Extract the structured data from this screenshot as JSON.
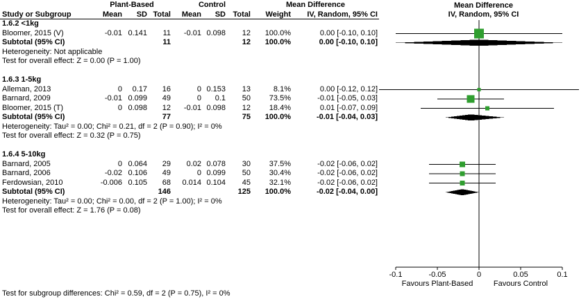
{
  "header": {
    "group1_label": "Plant-Based",
    "group2_label": "Control",
    "md_label": "Mean Difference",
    "col_study": "Study or Subgroup",
    "col_mean": "Mean",
    "col_sd": "SD",
    "col_total": "Total",
    "col_weight": "Weight",
    "col_ci": "IV, Random, 95% CI",
    "plot_title": "Mean Difference",
    "plot_subtitle": "IV, Random, 95% CI"
  },
  "colors": {
    "square": "#2f9e2f",
    "diamond": "#000000",
    "line": "#000000"
  },
  "footer": {
    "subgroup_test": "Test for subgroup differences: Chi² = 0.59, df = 2 (P = 0.75), I² = 0%"
  },
  "chart_data": {
    "type": "forest",
    "effect_measure": "Mean Difference IV, Random, 95% CI",
    "axis": {
      "min": -0.1,
      "max": 0.1,
      "ticks": [
        -0.1,
        -0.05,
        0,
        0.05,
        0.1
      ],
      "tick_labels": [
        "-0.1",
        "-0.05",
        "0",
        "0.05",
        "0.1"
      ],
      "left_label": "Favours Plant-Based",
      "right_label": "Favours Control"
    },
    "groups": [
      {
        "name": "1.6.2 <1kg",
        "studies": [
          {
            "label": "Bloomer, 2015 (V)",
            "mean1": "-0.01",
            "sd1": "0.141",
            "n1": "11",
            "mean2": "-0.01",
            "sd2": "0.098",
            "n2": "12",
            "weight": "100.0%",
            "ci_text": "0.00 [-0.10, 0.10]",
            "est": 0.0,
            "lo": -0.1,
            "hi": 0.1,
            "weight_pct": 100.0
          }
        ],
        "subtotal": {
          "label": "Subtotal (95% CI)",
          "n1": "11",
          "n2": "12",
          "weight": "100.0%",
          "ci_text": "0.00 [-0.10, 0.10]",
          "est": 0.0,
          "lo": -0.1,
          "hi": 0.1
        },
        "heterogeneity": "Heterogeneity: Not applicable",
        "overall_test": "Test for overall effect: Z = 0.00 (P = 1.00)"
      },
      {
        "name": "1.6.3 1-5kg",
        "studies": [
          {
            "label": "Alleman, 2013",
            "mean1": "0",
            "sd1": "0.17",
            "n1": "16",
            "mean2": "0",
            "sd2": "0.153",
            "n2": "13",
            "weight": "8.1%",
            "ci_text": "0.00 [-0.12, 0.12]",
            "est": 0.0,
            "lo": -0.12,
            "hi": 0.12,
            "weight_pct": 8.1
          },
          {
            "label": "Barnard, 2009",
            "mean1": "-0.01",
            "sd1": "0.099",
            "n1": "49",
            "mean2": "0",
            "sd2": "0.1",
            "n2": "50",
            "weight": "73.5%",
            "ci_text": "-0.01 [-0.05, 0.03]",
            "est": -0.01,
            "lo": -0.05,
            "hi": 0.03,
            "weight_pct": 73.5
          },
          {
            "label": "Bloomer, 2015 (T)",
            "mean1": "0",
            "sd1": "0.098",
            "n1": "12",
            "mean2": "-0.01",
            "sd2": "0.098",
            "n2": "12",
            "weight": "18.4%",
            "ci_text": "0.01 [-0.07, 0.09]",
            "est": 0.01,
            "lo": -0.07,
            "hi": 0.09,
            "weight_pct": 18.4
          }
        ],
        "subtotal": {
          "label": "Subtotal (95% CI)",
          "n1": "77",
          "n2": "75",
          "weight": "100.0%",
          "ci_text": "-0.01 [-0.04, 0.03]",
          "est": -0.01,
          "lo": -0.04,
          "hi": 0.03
        },
        "heterogeneity": "Heterogeneity: Tau² = 0.00; Chi² = 0.21, df = 2 (P = 0.90); I² = 0%",
        "overall_test": "Test for overall effect: Z = 0.32 (P = 0.75)"
      },
      {
        "name": "1.6.4 5-10kg",
        "studies": [
          {
            "label": "Barnard, 2005",
            "mean1": "0",
            "sd1": "0.064",
            "n1": "29",
            "mean2": "0.02",
            "sd2": "0.078",
            "n2": "30",
            "weight": "37.5%",
            "ci_text": "-0.02 [-0.06, 0.02]",
            "est": -0.02,
            "lo": -0.06,
            "hi": 0.02,
            "weight_pct": 37.5
          },
          {
            "label": "Barnard, 2006",
            "mean1": "-0.02",
            "sd1": "0.106",
            "n1": "49",
            "mean2": "0",
            "sd2": "0.099",
            "n2": "50",
            "weight": "30.4%",
            "ci_text": "-0.02 [-0.06, 0.02]",
            "est": -0.02,
            "lo": -0.06,
            "hi": 0.02,
            "weight_pct": 30.4
          },
          {
            "label": "Ferdowsian, 2010",
            "mean1": "-0.006",
            "sd1": "0.105",
            "n1": "68",
            "mean2": "0.014",
            "sd2": "0.104",
            "n2": "45",
            "weight": "32.1%",
            "ci_text": "-0.02 [-0.06, 0.02]",
            "est": -0.02,
            "lo": -0.06,
            "hi": 0.02,
            "weight_pct": 32.1
          }
        ],
        "subtotal": {
          "label": "Subtotal (95% CI)",
          "n1": "146",
          "n2": "125",
          "weight": "100.0%",
          "ci_text": "-0.02 [-0.04, 0.00]",
          "est": -0.02,
          "lo": -0.04,
          "hi": 0.0
        },
        "heterogeneity": "Heterogeneity: Tau² = 0.00; Chi² = 0.00, df = 2 (P = 1.00); I² = 0%",
        "overall_test": "Test for overall effect: Z = 1.76 (P = 0.08)"
      }
    ]
  }
}
